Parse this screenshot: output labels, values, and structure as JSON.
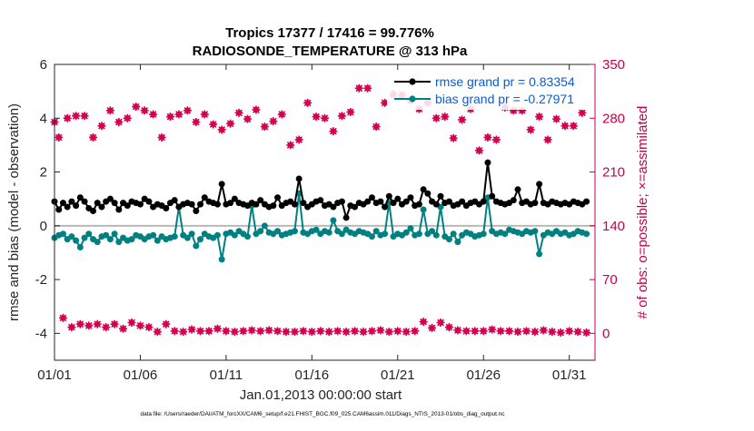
{
  "chart_data": {
    "type": "line",
    "title": [
      "Tropics 17377 / 17416 = 99.776%",
      "RADIOSONDE_TEMPERATURE @ 313 hPa"
    ],
    "xlabel": "Jan.01,2013 00:00:00 start",
    "ylabel_left": "rmse and bias (model - observation)",
    "ylabel_right": "# of obs: o=possible; ×=assimilated",
    "xlim": [
      0,
      31.5
    ],
    "ylim_left": [
      -5,
      6
    ],
    "ylim_right": [
      -35,
      350
    ],
    "x_ticks": [
      0,
      5,
      10,
      15,
      20,
      25,
      30
    ],
    "x_tick_labels": [
      "01/01",
      "01/06",
      "01/11",
      "01/16",
      "01/21",
      "01/26",
      "01/31"
    ],
    "y_ticks_left": [
      -4,
      -2,
      0,
      2,
      4,
      6
    ],
    "y_ticks_right": [
      0,
      70,
      140,
      210,
      280,
      350
    ],
    "footer": "data file: /Users/raeder/DAI/ATM_forcXX/CAM6_setup/f.e21.FHIST_BGC.f09_025.CAM6assim.011/Diags_NTrS_2013-01/obs_diag_output.nc",
    "colors": {
      "rmse": "#000000",
      "bias": "#008080",
      "obs": "#d6004e",
      "zero": "#b8b8b8",
      "legend_text": "#0b5bd6"
    },
    "legend": [
      {
        "name": "rmse grand pr = 0.83354",
        "color": "#000000"
      },
      {
        "name": "bias grand pr = -0.27971",
        "color": "#008080"
      }
    ],
    "legend_position": "top-right",
    "series": [
      {
        "name": "rmse",
        "axis": "left",
        "x": [
          0,
          0.25,
          0.5,
          0.75,
          1,
          1.25,
          1.5,
          1.75,
          2,
          2.25,
          2.5,
          2.75,
          3,
          3.25,
          3.5,
          3.75,
          4,
          4.25,
          4.5,
          4.75,
          5,
          5.25,
          5.5,
          5.75,
          6,
          6.25,
          6.5,
          6.75,
          7,
          7.25,
          7.5,
          7.75,
          8,
          8.25,
          8.5,
          8.75,
          9,
          9.25,
          9.5,
          9.75,
          10,
          10.25,
          10.5,
          10.75,
          11,
          11.25,
          11.5,
          11.75,
          12,
          12.25,
          12.5,
          12.75,
          13,
          13.25,
          13.5,
          13.75,
          14,
          14.25,
          14.5,
          14.75,
          15,
          15.25,
          15.5,
          15.75,
          16,
          16.25,
          16.5,
          16.75,
          17,
          17.25,
          17.5,
          17.75,
          18,
          18.25,
          18.5,
          18.75,
          19,
          19.25,
          19.5,
          19.75,
          20,
          20.25,
          20.5,
          20.75,
          21,
          21.25,
          21.5,
          21.75,
          22,
          22.25,
          22.5,
          22.75,
          23,
          23.25,
          23.5,
          23.75,
          24,
          24.25,
          24.5,
          24.75,
          25,
          25.25,
          25.5,
          25.75,
          26,
          26.25,
          26.5,
          26.75,
          27,
          27.25,
          27.5,
          27.75,
          28,
          28.25,
          28.5,
          28.75,
          29,
          29.25,
          29.5,
          29.75,
          30,
          30.25,
          30.5,
          30.75,
          31
        ],
        "y": [
          0.9,
          0.6,
          0.85,
          0.7,
          0.9,
          0.75,
          1.05,
          0.9,
          0.65,
          0.55,
          0.85,
          0.7,
          0.9,
          1.0,
          0.85,
          0.6,
          0.85,
          0.75,
          0.9,
          0.85,
          0.8,
          1.0,
          0.9,
          0.7,
          0.8,
          0.75,
          0.65,
          0.85,
          0.95,
          0.7,
          0.8,
          0.85,
          0.8,
          0.55,
          0.8,
          1.05,
          0.9,
          0.85,
          0.8,
          1.55,
          0.8,
          0.85,
          1.0,
          0.85,
          0.8,
          0.75,
          0.85,
          0.8,
          0.95,
          0.8,
          0.7,
          0.75,
          1.05,
          0.75,
          0.85,
          0.9,
          0.8,
          1.75,
          0.85,
          0.7,
          0.8,
          0.9,
          0.95,
          0.75,
          0.8,
          0.7,
          0.85,
          0.9,
          0.3,
          0.75,
          0.7,
          0.85,
          0.8,
          0.9,
          1.05,
          0.85,
          0.9,
          0.7,
          1.1,
          0.85,
          1.0,
          0.8,
          0.9,
          1.05,
          0.75,
          0.8,
          1.35,
          1.2,
          0.9,
          0.8,
          1.1,
          0.85,
          0.9,
          0.75,
          0.8,
          0.9,
          0.75,
          0.85,
          0.9,
          0.8,
          0.9,
          2.35,
          1.1,
          0.9,
          0.85,
          0.8,
          0.85,
          0.95,
          1.35,
          0.85,
          0.9,
          0.8,
          0.85,
          1.55,
          0.85,
          0.8,
          0.9,
          0.85,
          0.8,
          0.85,
          0.8,
          0.9,
          0.85,
          0.8,
          0.9
        ],
        "marker": "circle"
      },
      {
        "name": "bias",
        "axis": "left",
        "x": [
          0,
          0.25,
          0.5,
          0.75,
          1,
          1.25,
          1.5,
          1.75,
          2,
          2.25,
          2.5,
          2.75,
          3,
          3.25,
          3.5,
          3.75,
          4,
          4.25,
          4.5,
          4.75,
          5,
          5.25,
          5.5,
          5.75,
          6,
          6.25,
          6.5,
          6.75,
          7,
          7.25,
          7.5,
          7.75,
          8,
          8.25,
          8.5,
          8.75,
          9,
          9.25,
          9.5,
          9.75,
          10,
          10.25,
          10.5,
          10.75,
          11,
          11.25,
          11.5,
          11.75,
          12,
          12.25,
          12.5,
          12.75,
          13,
          13.25,
          13.5,
          13.75,
          14,
          14.25,
          14.5,
          14.75,
          15,
          15.25,
          15.5,
          15.75,
          16,
          16.25,
          16.5,
          16.75,
          17,
          17.25,
          17.5,
          17.75,
          18,
          18.25,
          18.5,
          18.75,
          19,
          19.25,
          19.5,
          19.75,
          20,
          20.25,
          20.5,
          20.75,
          21,
          21.25,
          21.5,
          21.75,
          22,
          22.25,
          22.5,
          22.75,
          23,
          23.25,
          23.5,
          23.75,
          24,
          24.25,
          24.5,
          24.75,
          25,
          25.25,
          25.5,
          25.75,
          26,
          26.25,
          26.5,
          26.75,
          27,
          27.25,
          27.5,
          27.75,
          28,
          28.25,
          28.5,
          28.75,
          29,
          29.25,
          29.5,
          29.75,
          30,
          30.25,
          30.5,
          30.75,
          31
        ],
        "y": [
          -0.45,
          -0.35,
          -0.3,
          -0.5,
          -0.4,
          -0.55,
          -0.8,
          -0.45,
          -0.3,
          -0.5,
          -0.6,
          -0.4,
          -0.35,
          -0.5,
          -0.3,
          -0.6,
          -0.45,
          -0.55,
          -0.5,
          -0.35,
          -0.4,
          -0.5,
          -0.4,
          -0.35,
          -0.55,
          -0.4,
          -0.5,
          -0.45,
          -0.4,
          0.7,
          -0.35,
          -0.45,
          -0.3,
          -0.75,
          -0.5,
          -0.3,
          -0.4,
          -0.45,
          -0.35,
          -1.25,
          -0.3,
          -0.25,
          -0.35,
          -0.2,
          -0.3,
          -0.4,
          0.75,
          -0.3,
          -0.2,
          0.0,
          -0.25,
          -0.3,
          -0.2,
          -0.35,
          -0.3,
          -0.25,
          -0.2,
          1.2,
          -0.25,
          -0.3,
          -0.2,
          -0.15,
          -0.3,
          -0.2,
          -0.25,
          0.2,
          -0.2,
          -0.3,
          -0.15,
          -0.25,
          -0.3,
          -0.2,
          -0.25,
          -0.3,
          -0.4,
          -0.2,
          -0.35,
          -0.3,
          0.85,
          -0.4,
          -0.3,
          -0.35,
          -0.25,
          -0.1,
          -0.35,
          -0.3,
          0.6,
          -0.3,
          -0.2,
          -0.35,
          0.7,
          -0.4,
          -0.5,
          -0.3,
          -0.6,
          -0.35,
          -0.25,
          -0.3,
          -0.4,
          -0.35,
          -0.3,
          1.05,
          -0.2,
          -0.3,
          -0.25,
          -0.3,
          -0.15,
          -0.2,
          -0.25,
          -0.3,
          -0.2,
          -0.25,
          -0.2,
          -1.05,
          -0.35,
          -0.25,
          -0.3,
          -0.2,
          -0.3,
          -0.25,
          -0.35,
          -0.3,
          -0.2,
          -0.25,
          -0.3
        ],
        "marker": "circle"
      },
      {
        "name": "# of obs possible / assimilated",
        "axis": "right",
        "x": [
          0,
          0.25,
          0.5,
          0.75,
          1,
          1.25,
          1.5,
          1.75,
          2,
          2.25,
          2.5,
          2.75,
          3,
          3.25,
          3.5,
          3.75,
          4,
          4.25,
          4.5,
          4.75,
          5,
          5.25,
          5.5,
          5.75,
          6,
          6.25,
          6.5,
          6.75,
          7,
          7.25,
          7.5,
          7.75,
          8,
          8.25,
          8.5,
          8.75,
          9,
          9.25,
          9.5,
          9.75,
          10,
          10.25,
          10.5,
          10.75,
          11,
          11.25,
          11.5,
          11.75,
          12,
          12.25,
          12.5,
          12.75,
          13,
          13.25,
          13.5,
          13.75,
          14,
          14.25,
          14.5,
          14.75,
          15,
          15.25,
          15.5,
          15.75,
          16,
          16.25,
          16.5,
          16.75,
          17,
          17.25,
          17.5,
          17.75,
          18,
          18.25,
          18.5,
          18.75,
          19,
          19.25,
          19.5,
          19.75,
          20,
          20.25,
          20.5,
          20.75,
          21,
          21.25,
          21.5,
          21.75,
          22,
          22.25,
          22.5,
          22.75,
          23,
          23.25,
          23.5,
          23.75,
          24,
          24.25,
          24.5,
          24.75,
          25,
          25.25,
          25.5,
          25.75,
          26,
          26.25,
          26.5,
          26.75,
          27,
          27.25,
          27.5,
          27.75,
          28,
          28.25,
          28.5,
          28.75,
          29,
          29.25,
          29.5,
          29.75,
          30,
          30.25,
          30.5,
          30.75,
          31
        ],
        "y": [
          275,
          255,
          20,
          280,
          8,
          283,
          12,
          283,
          10,
          255,
          12,
          270,
          8,
          290,
          12,
          275,
          6,
          280,
          14,
          295,
          10,
          290,
          8,
          285,
          2,
          255,
          12,
          282,
          3,
          285,
          2,
          290,
          5,
          275,
          3,
          285,
          3,
          272,
          6,
          265,
          3,
          273,
          2,
          287,
          3,
          279,
          4,
          291,
          3,
          269,
          4,
          276,
          3,
          285,
          2,
          245,
          2,
          252,
          3,
          300,
          2,
          282,
          3,
          280,
          2,
          263,
          3,
          283,
          2,
          288,
          3,
          319,
          2,
          319,
          3,
          269,
          4,
          300,
          2,
          311,
          3,
          310,
          2,
          303,
          3,
          292,
          15,
          300,
          7,
          280,
          14,
          282,
          8,
          254,
          4,
          278,
          3,
          292,
          3,
          238,
          3,
          255,
          5,
          252,
          3,
          294,
          3,
          290,
          2,
          290,
          3,
          265,
          2,
          282,
          4,
          252,
          2,
          279,
          1,
          270,
          3,
          270,
          2,
          287,
          1
        ],
        "marker": "asterisk"
      }
    ]
  }
}
